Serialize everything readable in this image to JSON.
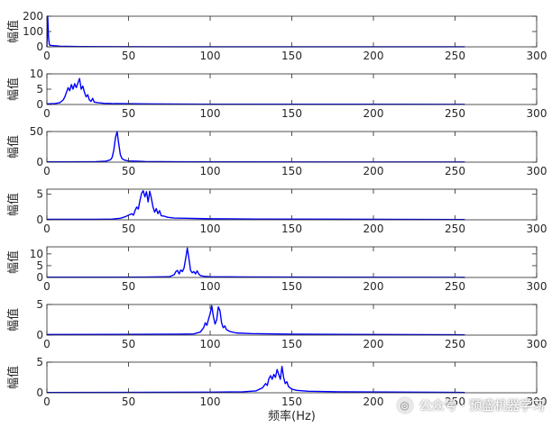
{
  "figure": {
    "watermark_text": "公众号 · 预盛机器学习",
    "watermark_icon": "wechat-icon"
  },
  "chart_data": [
    {
      "type": "line",
      "ylabel": "幅值",
      "xlabel": "",
      "xlim": [
        0,
        300
      ],
      "ylim": [
        0,
        200
      ],
      "xticks": [
        "0",
        "50",
        "100",
        "150",
        "200",
        "250",
        "300"
      ],
      "yticks": [
        "0",
        "100",
        "200"
      ],
      "series": [
        {
          "color": "#0000ff",
          "points": [
            [
              0,
              0
            ],
            [
              0.5,
              200
            ],
            [
              1,
              60
            ],
            [
              1.5,
              15
            ],
            [
              2,
              10
            ],
            [
              4,
              8
            ],
            [
              6,
              6
            ],
            [
              8,
              4
            ],
            [
              12,
              3
            ],
            [
              20,
              2
            ],
            [
              40,
              1
            ],
            [
              80,
              0.6
            ],
            [
              150,
              0.4
            ],
            [
              256,
              0.3
            ]
          ]
        }
      ]
    },
    {
      "type": "line",
      "ylabel": "幅值",
      "xlabel": "",
      "xlim": [
        0,
        300
      ],
      "ylim": [
        0,
        10
      ],
      "xticks": [
        "0",
        "50",
        "100",
        "150",
        "200",
        "250",
        "300"
      ],
      "yticks": [
        "0",
        "5",
        "10"
      ],
      "series": [
        {
          "color": "#0000ff",
          "points": [
            [
              0,
              0.2
            ],
            [
              5,
              0.3
            ],
            [
              8,
              0.6
            ],
            [
              10,
              1.5
            ],
            [
              11,
              2.5
            ],
            [
              12,
              4
            ],
            [
              13,
              5.5
            ],
            [
              14,
              4.5
            ],
            [
              15,
              6.5
            ],
            [
              16,
              5
            ],
            [
              17,
              6.8
            ],
            [
              18,
              5.5
            ],
            [
              19,
              7
            ],
            [
              20,
              8.5
            ],
            [
              21,
              5
            ],
            [
              22,
              6
            ],
            [
              23,
              4
            ],
            [
              24,
              2.5
            ],
            [
              25,
              3.2
            ],
            [
              26,
              1.5
            ],
            [
              27,
              1
            ],
            [
              28,
              2
            ],
            [
              29,
              0.8
            ],
            [
              31,
              0.6
            ],
            [
              35,
              0.4
            ],
            [
              40,
              0.3
            ],
            [
              60,
              0.2
            ],
            [
              100,
              0.1
            ],
            [
              256,
              0.05
            ]
          ]
        }
      ]
    },
    {
      "type": "line",
      "ylabel": "幅值",
      "xlabel": "",
      "xlim": [
        0,
        300
      ],
      "ylim": [
        0,
        50
      ],
      "xticks": [
        "0",
        "50",
        "100",
        "150",
        "200",
        "250",
        "300"
      ],
      "yticks": [
        "0",
        "50"
      ],
      "series": [
        {
          "color": "#0000ff",
          "points": [
            [
              0,
              0.5
            ],
            [
              20,
              0.6
            ],
            [
              30,
              0.8
            ],
            [
              36,
              1.5
            ],
            [
              38,
              3
            ],
            [
              39,
              4
            ],
            [
              40,
              8
            ],
            [
              41,
              20
            ],
            [
              42,
              40
            ],
            [
              43,
              50
            ],
            [
              44,
              30
            ],
            [
              45,
              12
            ],
            [
              46,
              6
            ],
            [
              47,
              4
            ],
            [
              48,
              3
            ],
            [
              50,
              2
            ],
            [
              55,
              1.5
            ],
            [
              60,
              1
            ],
            [
              80,
              0.6
            ],
            [
              120,
              0.4
            ],
            [
              256,
              0.2
            ]
          ]
        }
      ]
    },
    {
      "type": "line",
      "ylabel": "幅值",
      "xlabel": "",
      "xlim": [
        0,
        300
      ],
      "ylim": [
        0,
        6
      ],
      "xticks": [
        "0",
        "50",
        "100",
        "150",
        "200",
        "250",
        "300"
      ],
      "yticks": [
        "0",
        "5"
      ],
      "series": [
        {
          "color": "#0000ff",
          "points": [
            [
              0,
              0.1
            ],
            [
              30,
              0.1
            ],
            [
              40,
              0.15
            ],
            [
              45,
              0.3
            ],
            [
              48,
              0.6
            ],
            [
              50,
              0.9
            ],
            [
              52,
              1.2
            ],
            [
              53,
              0.9
            ],
            [
              54,
              1.8
            ],
            [
              55,
              2.5
            ],
            [
              56,
              2.1
            ],
            [
              57,
              3.8
            ],
            [
              58,
              5.2
            ],
            [
              59,
              5.7
            ],
            [
              60,
              4.5
            ],
            [
              61,
              5.5
            ],
            [
              62,
              3.5
            ],
            [
              63,
              5.6
            ],
            [
              64,
              4.2
            ],
            [
              65,
              2.5
            ],
            [
              66,
              1.5
            ],
            [
              67,
              2.2
            ],
            [
              68,
              1.2
            ],
            [
              69,
              1.8
            ],
            [
              70,
              0.8
            ],
            [
              72,
              0.7
            ],
            [
              74,
              0.5
            ],
            [
              78,
              0.35
            ],
            [
              85,
              0.3
            ],
            [
              100,
              0.2
            ],
            [
              130,
              0.15
            ],
            [
              256,
              0.05
            ]
          ]
        }
      ]
    },
    {
      "type": "line",
      "ylabel": "幅值",
      "xlabel": "",
      "xlim": [
        0,
        300
      ],
      "ylim": [
        0,
        13
      ],
      "xticks": [
        "0",
        "50",
        "100",
        "150",
        "200",
        "250",
        "300"
      ],
      "yticks": [
        "0",
        "5",
        "10"
      ],
      "series": [
        {
          "color": "#0000ff",
          "points": [
            [
              0,
              0.1
            ],
            [
              60,
              0.15
            ],
            [
              75,
              0.3
            ],
            [
              78,
              1.2
            ],
            [
              79,
              2.5
            ],
            [
              80,
              3
            ],
            [
              81,
              1.5
            ],
            [
              82,
              3.2
            ],
            [
              83,
              2.5
            ],
            [
              84,
              4
            ],
            [
              85,
              8
            ],
            [
              86,
              12.5
            ],
            [
              87,
              8
            ],
            [
              88,
              3
            ],
            [
              89,
              2
            ],
            [
              90,
              2.5
            ],
            [
              91,
              1.5
            ],
            [
              92,
              2.8
            ],
            [
              93,
              1.5
            ],
            [
              94,
              0.8
            ],
            [
              96,
              0.5
            ],
            [
              100,
              0.3
            ],
            [
              120,
              0.2
            ],
            [
              256,
              0.05
            ]
          ]
        }
      ]
    },
    {
      "type": "line",
      "ylabel": "幅值",
      "xlabel": "",
      "xlim": [
        0,
        300
      ],
      "ylim": [
        0,
        5
      ],
      "xticks": [
        "0",
        "50",
        "100",
        "150",
        "200",
        "250",
        "300"
      ],
      "yticks": [
        "0",
        "5"
      ],
      "series": [
        {
          "color": "#0000ff",
          "points": [
            [
              0,
              0.1
            ],
            [
              80,
              0.15
            ],
            [
              90,
              0.2
            ],
            [
              94,
              0.5
            ],
            [
              96,
              1.2
            ],
            [
              97,
              2
            ],
            [
              98,
              1.6
            ],
            [
              99,
              2.6
            ],
            [
              100,
              3.5
            ],
            [
              101,
              4.8
            ],
            [
              102,
              3
            ],
            [
              103,
              1.8
            ],
            [
              104,
              2.5
            ],
            [
              105,
              4.6
            ],
            [
              106,
              4
            ],
            [
              107,
              2
            ],
            [
              108,
              1.2
            ],
            [
              109,
              1.5
            ],
            [
              110,
              0.9
            ],
            [
              112,
              0.6
            ],
            [
              116,
              0.35
            ],
            [
              125,
              0.25
            ],
            [
              150,
              0.15
            ],
            [
              256,
              0.05
            ]
          ]
        }
      ]
    },
    {
      "type": "line",
      "ylabel": "幅值",
      "xlabel": "频率(Hz)",
      "xlim": [
        0,
        300
      ],
      "ylim": [
        0,
        5
      ],
      "xticks": [
        "0",
        "50",
        "100",
        "150",
        "200",
        "250",
        "300"
      ],
      "yticks": [
        "0",
        "5"
      ],
      "series": [
        {
          "color": "#0000ff",
          "points": [
            [
              0,
              0.05
            ],
            [
              100,
              0.1
            ],
            [
              120,
              0.15
            ],
            [
              128,
              0.3
            ],
            [
              132,
              0.8
            ],
            [
              134,
              1.5
            ],
            [
              135,
              1.2
            ],
            [
              136,
              2.3
            ],
            [
              137,
              2.8
            ],
            [
              138,
              2.2
            ],
            [
              139,
              3
            ],
            [
              140,
              2.5
            ],
            [
              141,
              3.8
            ],
            [
              142,
              3
            ],
            [
              143,
              2.2
            ],
            [
              144,
              4.3
            ],
            [
              145,
              2.5
            ],
            [
              146,
              1.5
            ],
            [
              147,
              1.8
            ],
            [
              148,
              1
            ],
            [
              150,
              0.6
            ],
            [
              153,
              0.4
            ],
            [
              160,
              0.25
            ],
            [
              180,
              0.15
            ],
            [
              256,
              0.05
            ]
          ]
        }
      ]
    }
  ]
}
